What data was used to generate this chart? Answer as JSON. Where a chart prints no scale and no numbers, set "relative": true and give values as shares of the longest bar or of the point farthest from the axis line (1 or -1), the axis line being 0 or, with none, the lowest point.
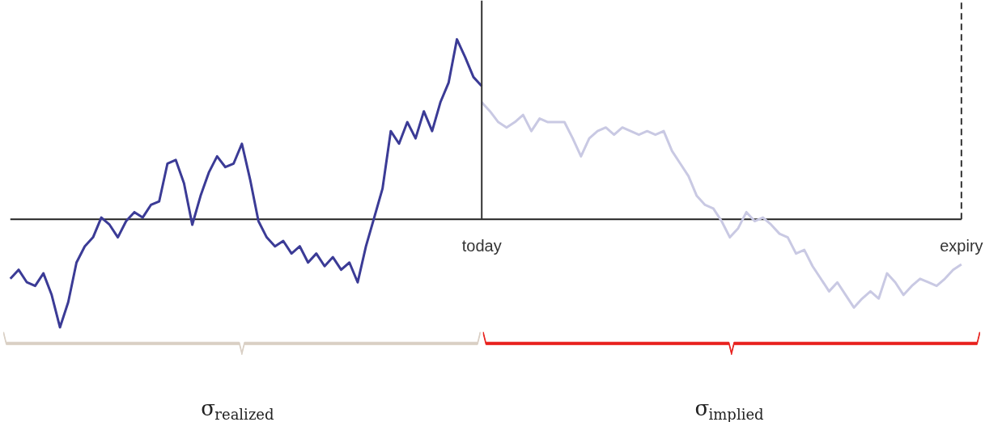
{
  "chart_data": {
    "type": "line",
    "relative": true,
    "grid": false,
    "marker": "none",
    "line_style": "solid",
    "categories": [
      null,
      null,
      null,
      null,
      null,
      null,
      null,
      null,
      null,
      null,
      null,
      null,
      null,
      null,
      null,
      null,
      null,
      null,
      null,
      null,
      null,
      null,
      null,
      null,
      null,
      null,
      null,
      null,
      null,
      null,
      null,
      null,
      null,
      null,
      null,
      null,
      null,
      null,
      null,
      null,
      null,
      null,
      null,
      null,
      null,
      null,
      null,
      null,
      null,
      null,
      null,
      null,
      null,
      null,
      null,
      null,
      null,
      null,
      null,
      null,
      null,
      null,
      null,
      null,
      null,
      null,
      null,
      null,
      null,
      null,
      null,
      null,
      null,
      null,
      null,
      null,
      null,
      null,
      null,
      null,
      null,
      null,
      null,
      null,
      null,
      null,
      null,
      null,
      null,
      null,
      null,
      null,
      null,
      null,
      null,
      null,
      null,
      null,
      null,
      null,
      null,
      null,
      null,
      null,
      null,
      null,
      null,
      null,
      null,
      null,
      null,
      null,
      null,
      null,
      null,
      null
    ],
    "series": [
      {
        "color": "#3b3b96",
        "values": [
          -0.33,
          -0.28,
          -0.35,
          -0.37,
          -0.3,
          -0.42,
          -0.6,
          -0.46,
          -0.24,
          -0.15,
          -0.1,
          0.01,
          -0.03,
          -0.1,
          -0.01,
          0.04,
          0.01,
          0.08,
          0.1,
          0.31,
          0.33,
          0.2,
          -0.03,
          0.13,
          0.26,
          0.35,
          0.29,
          0.31,
          0.42,
          0.22,
          -0.01,
          -0.1,
          -0.15,
          -0.12,
          -0.19,
          -0.15,
          -0.24,
          -0.19,
          -0.26,
          -0.21,
          -0.28,
          -0.24,
          -0.35,
          -0.15,
          0.01,
          0.17,
          0.49,
          0.42,
          0.54,
          0.45,
          0.6,
          0.49,
          0.65,
          0.76,
          1.0,
          0.9,
          0.79,
          0.74,
          null,
          null,
          null,
          null,
          null,
          null,
          null,
          null,
          null,
          null,
          null,
          null,
          null,
          null,
          null,
          null,
          null,
          null,
          null,
          null,
          null,
          null,
          null,
          null,
          null,
          null,
          null,
          null,
          null,
          null,
          null,
          null,
          null,
          null,
          null,
          null,
          null,
          null,
          null,
          null,
          null,
          null,
          null,
          null,
          null,
          null,
          null,
          null,
          null,
          null,
          null,
          null,
          null,
          null,
          null,
          null,
          null,
          null
        ]
      },
      {
        "color": "#c9c9e3",
        "values": [
          null,
          null,
          null,
          null,
          null,
          null,
          null,
          null,
          null,
          null,
          null,
          null,
          null,
          null,
          null,
          null,
          null,
          null,
          null,
          null,
          null,
          null,
          null,
          null,
          null,
          null,
          null,
          null,
          null,
          null,
          null,
          null,
          null,
          null,
          null,
          null,
          null,
          null,
          null,
          null,
          null,
          null,
          null,
          null,
          null,
          null,
          null,
          null,
          null,
          null,
          null,
          null,
          null,
          null,
          null,
          null,
          null,
          0.65,
          0.6,
          0.54,
          0.51,
          0.54,
          0.58,
          0.49,
          0.56,
          0.54,
          0.54,
          0.54,
          0.45,
          0.35,
          0.45,
          0.49,
          0.51,
          0.47,
          0.51,
          0.49,
          0.47,
          0.49,
          0.47,
          0.49,
          0.38,
          0.31,
          0.24,
          0.13,
          0.08,
          0.06,
          -0.01,
          -0.1,
          -0.05,
          0.04,
          -0.01,
          0.01,
          -0.03,
          -0.08,
          -0.1,
          -0.19,
          -0.17,
          -0.26,
          -0.33,
          -0.4,
          -0.35,
          -0.42,
          -0.49,
          -0.44,
          -0.4,
          -0.44,
          -0.3,
          -0.35,
          -0.42,
          -0.37,
          -0.33,
          -0.35,
          -0.37,
          -0.33,
          -0.28,
          -0.25
        ]
      }
    ],
    "annotations": [
      "today",
      "expiry",
      "σ$_{realized}$",
      "σ$_{implied}$"
    ]
  }
}
